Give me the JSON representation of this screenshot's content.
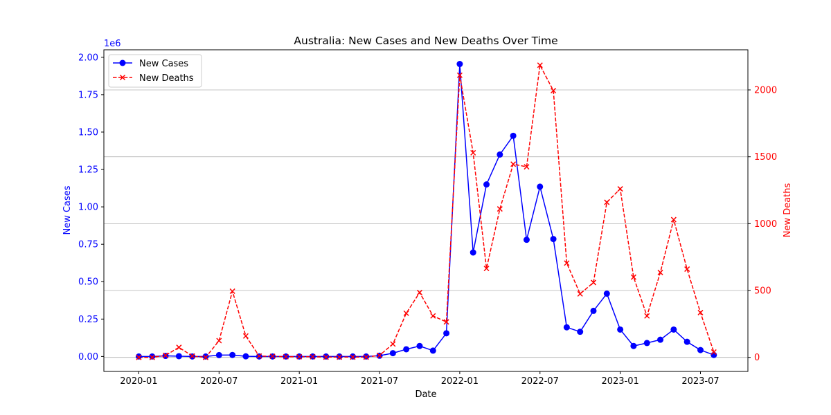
{
  "chart_data": {
    "type": "line",
    "title": "Australia: New Cases and New Deaths Over Time",
    "xlabel": "Date",
    "ylabel_left": "New Cases",
    "ylabel_right": "New Deaths",
    "left_axis_multiplier": "1e6",
    "ylim_left": [
      -0.1,
      2.05
    ],
    "ylim_right": [
      -105,
      2300
    ],
    "left_ticks": [
      "0.00",
      "0.25",
      "0.50",
      "0.75",
      "1.00",
      "1.25",
      "1.50",
      "1.75",
      "2.00"
    ],
    "right_ticks": [
      "0",
      "500",
      "1000",
      "1500",
      "2000"
    ],
    "x_ticks": [
      "2020-01",
      "2020-07",
      "2021-01",
      "2021-07",
      "2022-01",
      "2022-07",
      "2023-01",
      "2023-07"
    ],
    "grid": "right-axis horizontal gridlines",
    "legend_position": "top-left",
    "colors": {
      "cases": "#0000ff",
      "deaths": "#ff0000"
    },
    "x": [
      "2020-01",
      "2020-02",
      "2020-03",
      "2020-04",
      "2020-05",
      "2020-06",
      "2020-07",
      "2020-08",
      "2020-09",
      "2020-10",
      "2020-11",
      "2020-12",
      "2021-01",
      "2021-02",
      "2021-03",
      "2021-04",
      "2021-05",
      "2021-06",
      "2021-07",
      "2021-08",
      "2021-09",
      "2021-10",
      "2021-11",
      "2021-12",
      "2022-01",
      "2022-02",
      "2022-03",
      "2022-04",
      "2022-05",
      "2022-06",
      "2022-07",
      "2022-08",
      "2022-09",
      "2022-10",
      "2022-11",
      "2022-12",
      "2023-01",
      "2023-02",
      "2023-03",
      "2023-04",
      "2023-05",
      "2023-06",
      "2023-07",
      "2023-08"
    ],
    "series": [
      {
        "name": "New Cases",
        "axis": "left",
        "style": "solid-circle",
        "values": [
          0.0,
          0.0,
          0.004,
          0.002,
          0.0,
          0.0,
          0.009,
          0.01,
          0.001,
          0.0,
          0.0,
          0.0,
          0.0,
          0.0,
          0.0,
          0.0,
          0.0,
          0.0,
          0.005,
          0.022,
          0.048,
          0.07,
          0.039,
          0.155,
          1.955,
          0.695,
          1.15,
          1.35,
          1.475,
          0.78,
          1.135,
          0.785,
          0.195,
          0.165,
          0.305,
          0.42,
          0.18,
          0.07,
          0.09,
          0.112,
          0.18,
          0.098,
          0.043,
          0.01
        ]
      },
      {
        "name": "New Deaths",
        "axis": "right",
        "style": "dashed-x",
        "values": [
          0,
          0,
          15,
          75,
          10,
          0,
          125,
          495,
          160,
          10,
          8,
          5,
          5,
          5,
          2,
          2,
          2,
          2,
          15,
          100,
          330,
          485,
          310,
          265,
          2110,
          1530,
          665,
          1110,
          1445,
          1425,
          2185,
          1995,
          705,
          475,
          560,
          1160,
          1260,
          600,
          310,
          635,
          1030,
          660,
          335,
          40
        ]
      }
    ]
  }
}
